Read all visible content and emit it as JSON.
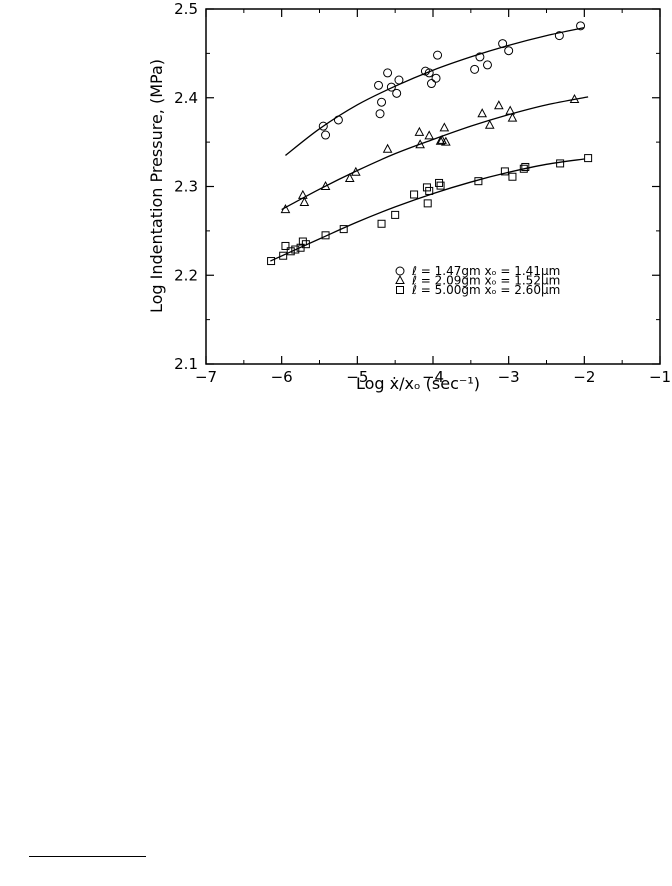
{
  "chart_data": {
    "type": "scatter",
    "xlabel": "Log ẋ/xₒ (sec⁻¹)",
    "ylabel": "Log Indentation Pressure, (MPa)",
    "xlim": [
      -7,
      -1
    ],
    "ylim": [
      2.1,
      2.5
    ],
    "x_ticks": [
      "−7",
      "−6",
      "−5",
      "−4",
      "−3",
      "−2",
      "−1"
    ],
    "y_ticks": [
      "2.1",
      "2.2",
      "2.3",
      "2.4",
      "2.5"
    ],
    "grid": false,
    "legend_position": "lower-right",
    "series": [
      {
        "name": "ℓ = 1.47gm  xₒ = 1.41μm",
        "marker": "circle",
        "points": [
          [
            -5.45,
            2.368
          ],
          [
            -5.42,
            2.358
          ],
          [
            -5.25,
            2.375
          ],
          [
            -4.72,
            2.414
          ],
          [
            -4.7,
            2.382
          ],
          [
            -4.68,
            2.395
          ],
          [
            -4.6,
            2.428
          ],
          [
            -4.55,
            2.412
          ],
          [
            -4.48,
            2.405
          ],
          [
            -4.45,
            2.42
          ],
          [
            -4.1,
            2.43
          ],
          [
            -4.05,
            2.428
          ],
          [
            -4.02,
            2.416
          ],
          [
            -3.96,
            2.422
          ],
          [
            -3.94,
            2.448
          ],
          [
            -3.45,
            2.432
          ],
          [
            -3.38,
            2.446
          ],
          [
            -3.28,
            2.437
          ],
          [
            -3.08,
            2.461
          ],
          [
            -3.0,
            2.453
          ],
          [
            -2.33,
            2.47
          ],
          [
            -2.05,
            2.481
          ]
        ],
        "fit": [
          [
            -5.95,
            2.335
          ],
          [
            -5.5,
            2.365
          ],
          [
            -5.0,
            2.392
          ],
          [
            -4.5,
            2.413
          ],
          [
            -4.0,
            2.431
          ],
          [
            -3.5,
            2.446
          ],
          [
            -3.0,
            2.459
          ],
          [
            -2.5,
            2.47
          ],
          [
            -2.0,
            2.479
          ]
        ]
      },
      {
        "name": "ℓ = 2.09gm  xₒ = 1.52μm",
        "marker": "triangle",
        "points": [
          [
            -5.95,
            2.274
          ],
          [
            -5.72,
            2.29
          ],
          [
            -5.7,
            2.282
          ],
          [
            -5.42,
            2.3
          ],
          [
            -5.1,
            2.309
          ],
          [
            -5.02,
            2.316
          ],
          [
            -4.6,
            2.342
          ],
          [
            -4.18,
            2.361
          ],
          [
            -4.17,
            2.347
          ],
          [
            -4.05,
            2.357
          ],
          [
            -3.9,
            2.351
          ],
          [
            -3.88,
            2.352
          ],
          [
            -3.85,
            2.366
          ],
          [
            -3.83,
            2.35
          ],
          [
            -3.35,
            2.382
          ],
          [
            -3.25,
            2.369
          ],
          [
            -3.13,
            2.391
          ],
          [
            -2.98,
            2.385
          ],
          [
            -2.95,
            2.377
          ],
          [
            -2.13,
            2.398
          ]
        ],
        "fit": [
          [
            -6.0,
            2.274
          ],
          [
            -5.5,
            2.297
          ],
          [
            -5.0,
            2.318
          ],
          [
            -4.5,
            2.337
          ],
          [
            -4.0,
            2.353
          ],
          [
            -3.5,
            2.368
          ],
          [
            -3.0,
            2.381
          ],
          [
            -2.5,
            2.392
          ],
          [
            -1.95,
            2.401
          ]
        ]
      },
      {
        "name": "ℓ = 5.00gm  xₒ = 2.60μm",
        "marker": "square",
        "points": [
          [
            -6.14,
            2.216
          ],
          [
            -5.98,
            2.222
          ],
          [
            -5.95,
            2.233
          ],
          [
            -5.88,
            2.227
          ],
          [
            -5.82,
            2.229
          ],
          [
            -5.75,
            2.231
          ],
          [
            -5.72,
            2.238
          ],
          [
            -5.68,
            2.235
          ],
          [
            -5.42,
            2.245
          ],
          [
            -5.18,
            2.252
          ],
          [
            -4.68,
            2.258
          ],
          [
            -4.5,
            2.268
          ],
          [
            -4.25,
            2.291
          ],
          [
            -4.08,
            2.299
          ],
          [
            -4.07,
            2.281
          ],
          [
            -4.05,
            2.295
          ],
          [
            -3.92,
            2.304
          ],
          [
            -3.9,
            2.301
          ],
          [
            -3.4,
            2.306
          ],
          [
            -3.05,
            2.317
          ],
          [
            -2.95,
            2.311
          ],
          [
            -2.8,
            2.32
          ],
          [
            -2.78,
            2.322
          ],
          [
            -2.32,
            2.326
          ],
          [
            -1.95,
            2.332
          ]
        ],
        "fit": [
          [
            -6.15,
            2.216
          ],
          [
            -5.5,
            2.241
          ],
          [
            -5.0,
            2.26
          ],
          [
            -4.5,
            2.277
          ],
          [
            -4.0,
            2.292
          ],
          [
            -3.5,
            2.305
          ],
          [
            -3.0,
            2.316
          ],
          [
            -2.5,
            2.325
          ],
          [
            -2.0,
            2.331
          ]
        ]
      }
    ]
  }
}
